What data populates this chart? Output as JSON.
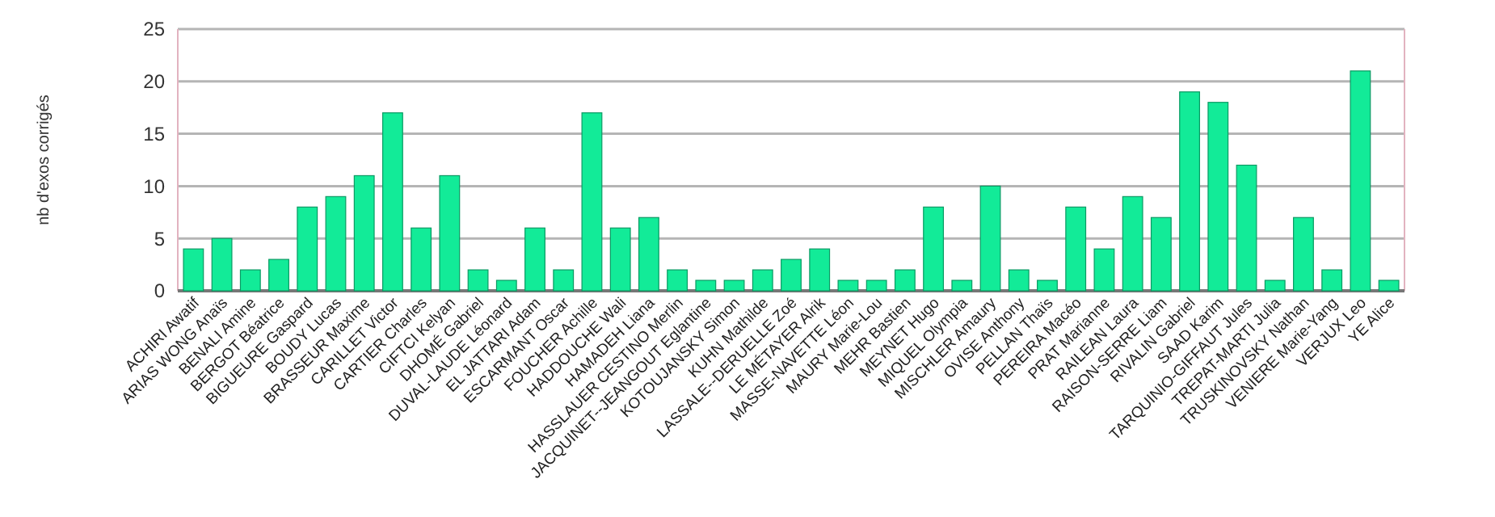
{
  "chart_data": {
    "type": "bar",
    "ylabel": "nb d'exos corrigés",
    "categories": [
      "ACHIRI Awatif",
      "ARIAS WONG Anaïs",
      "BENALI Amine",
      "BERGOT Béatrice",
      "BIGUEURE Gaspard",
      "BOUDY  Lucas",
      "BRASSEUR Maxime",
      "CARILLET Victor",
      "CARTIER Charles",
      "CIFTCI Kelyan",
      "DHOMÉ Gabriel",
      "DUVAL-LAUDE  Léonard",
      "EL JATTARI Adam",
      "ESCARMANT Oscar",
      "FOUCHER Achille",
      "HADDOUCHE Wali",
      "HAMADEH Liana",
      "HASSLAUER CESTINO  Merlin",
      "JACQUINET--JEANGOUT Eglantine",
      "KOTOUJANSKY Simon",
      "KUHN Mathilde",
      "LASSALE--DERUELLE Zoé",
      "LE MÉTAYER Alrik",
      "MASSE-NAVETTE Léon",
      "MAURY  Marie-Lou",
      "MEHR Bastien",
      "MEYNET Hugo",
      "MIQUEL Olympia",
      "MISCHLER Amaury",
      "OVISE Anthony",
      "PELLAN Thaïs",
      "PEREIRA  Macéo",
      "PRAT Marianne",
      "RAILEAN Laura",
      "RAISON-SERRE Liam",
      "RIVALIN Gabriel",
      "SAAD Karim",
      "TARQUINIO-GIFFAUT Jules",
      "TREPAT-MARTI  Julia",
      "TRUSKINOVSKY Nathan",
      "VENIERE Marie-Yang",
      "VERJUX Leo",
      "YE Alice"
    ],
    "values": [
      4,
      5,
      2,
      3,
      8,
      9,
      11,
      17,
      6,
      11,
      2,
      1,
      6,
      2,
      17,
      6,
      7,
      2,
      1,
      1,
      2,
      3,
      4,
      1,
      1,
      2,
      8,
      1,
      10,
      2,
      1,
      8,
      4,
      9,
      7,
      19,
      18,
      12,
      1,
      7,
      2,
      21,
      1
    ],
    "color": "#12eb98",
    "ylim": [
      0,
      25
    ],
    "yticks": [
      0,
      5,
      10,
      15,
      20,
      25
    ],
    "grid": "y"
  }
}
